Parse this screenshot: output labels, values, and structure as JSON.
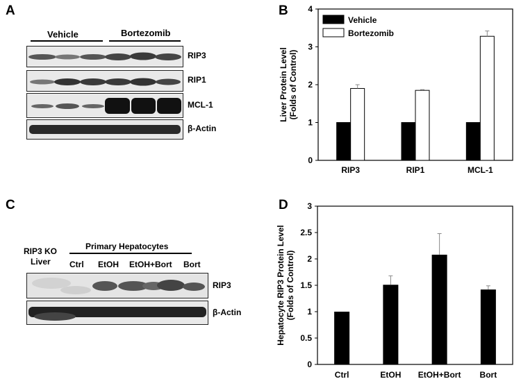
{
  "panels": {
    "a": {
      "letter": "A",
      "groups": [
        "Vehicle",
        "Bortezomib"
      ],
      "rows": [
        "RIP3",
        "RIP1",
        "MCL-1",
        "β-Actin"
      ]
    },
    "b": {
      "letter": "B"
    },
    "c": {
      "letter": "C",
      "ko_label_line1": "RIP3 KO",
      "ko_label_line2": "Liver",
      "group_label": "Primary Hepatocytes",
      "lanes": [
        "Ctrl",
        "EtOH",
        "EtOH+Bort",
        "Bort"
      ],
      "rows": [
        "RIP3",
        "β-Actin"
      ]
    },
    "d": {
      "letter": "D"
    }
  },
  "chart_data": [
    {
      "panel": "B",
      "type": "bar",
      "categories": [
        "RIP3",
        "RIP1",
        "MCL-1"
      ],
      "series": [
        {
          "name": "Vehicle",
          "values": [
            1.0,
            1.0,
            1.0
          ],
          "errors": [
            0.0,
            0.0,
            0.0
          ],
          "color": "#000000"
        },
        {
          "name": "Bortezomib",
          "values": [
            1.9,
            1.85,
            3.28
          ],
          "errors": [
            0.1,
            0.02,
            0.14
          ],
          "color": "#ffffff"
        }
      ],
      "ylabel_line1": "Liver Protein Level",
      "ylabel_line2": "(Folds of Control)",
      "ylim": [
        0,
        4
      ],
      "yticks": [
        "0",
        "1",
        "2",
        "3",
        "4"
      ],
      "legend_position": "top-left"
    },
    {
      "panel": "D",
      "type": "bar",
      "categories": [
        "Ctrl",
        "EtOH",
        "EtOH+Bort",
        "Bort"
      ],
      "values": [
        1.0,
        1.51,
        2.08,
        1.42
      ],
      "errors": [
        0.0,
        0.17,
        0.4,
        0.07
      ],
      "ylabel_line1": "Hepatocyte RIP3 Protein Level",
      "ylabel_line2": "(Folds of Control)",
      "ylim": [
        0,
        3
      ],
      "yticks": [
        "0",
        "0.5",
        "1",
        "1.5",
        "2",
        "2.5",
        "3"
      ],
      "color": "#000000"
    }
  ]
}
